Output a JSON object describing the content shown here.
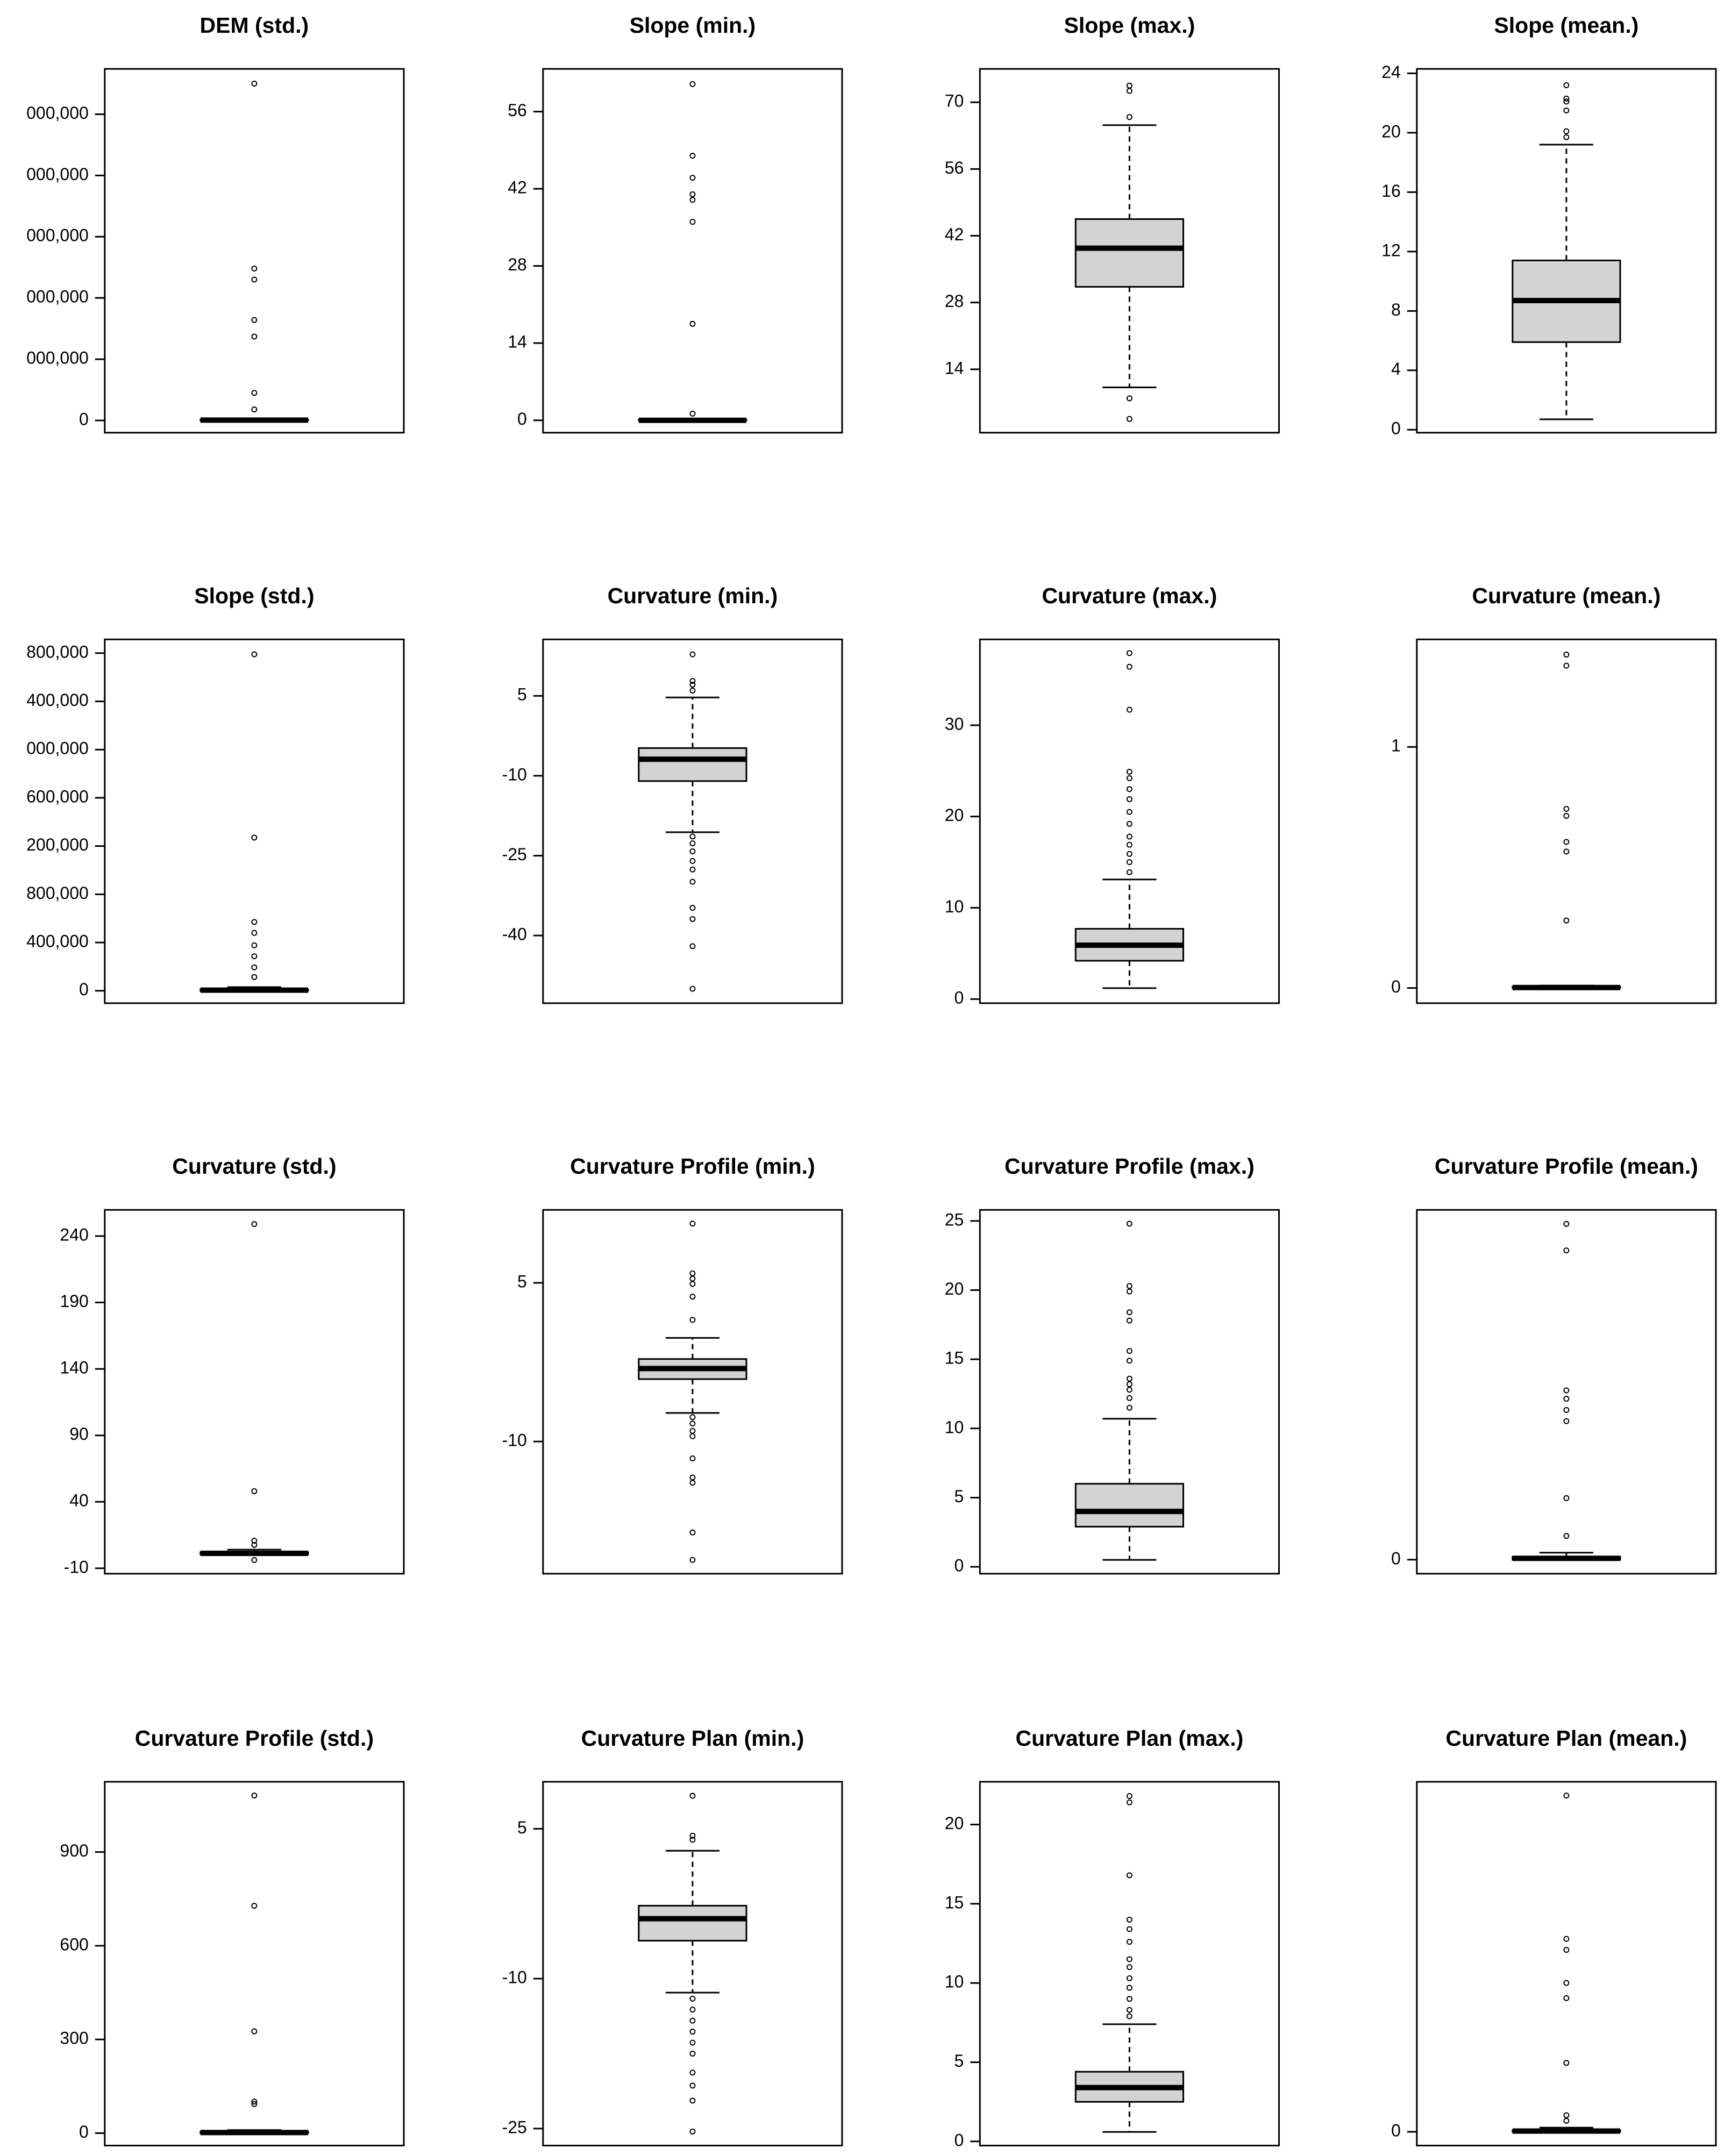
{
  "chart_data": [
    {
      "type": "box",
      "title": "DEM (std.)",
      "color": "#d3d3d3",
      "ylim": [
        -200000,
        5740000
      ],
      "yticks": [
        0,
        {
          "value": 1000000,
          "label": "000,000"
        },
        {
          "value": 2000000,
          "label": "000,000"
        },
        {
          "value": 3000000,
          "label": "000,000"
        },
        {
          "value": 4000000,
          "label": "000,000"
        },
        {
          "value": 5000000,
          "label": "000,000"
        }
      ],
      "whisker_low": 0,
      "q1": 0,
      "median": 5000,
      "q3": 10000,
      "whisker_high": 30000,
      "outliers": [
        5500000,
        2480000,
        2300000,
        1640000,
        1370000,
        450000,
        180000
      ]
    },
    {
      "type": "box",
      "title": "Slope (min.)",
      "color": "#d3d3d3",
      "ylim": [
        -2.25,
        63.75
      ],
      "yticks": [
        0,
        14,
        28,
        42,
        56
      ],
      "whisker_low": 0,
      "q1": 0,
      "median": 0,
      "q3": 0.1,
      "whisker_high": 0.3,
      "outliers": [
        61,
        48,
        44,
        41,
        40,
        36,
        17.5,
        1.2
      ]
    },
    {
      "type": "box",
      "title": "Slope (max.)",
      "color": "#d3d3d3",
      "ylim": [
        0.7,
        77
      ],
      "yticks": [
        14,
        28,
        42,
        56,
        70
      ],
      "whisker_low": 10.2,
      "q1": 31.3,
      "median": 39.4,
      "q3": 45.5,
      "whisker_high": 65.2,
      "outliers": [
        73.5,
        72.4,
        66.9,
        7.9,
        3.6
      ]
    },
    {
      "type": "box",
      "title": "Slope (mean.)",
      "color": "#d3d3d3",
      "ylim": [
        -0.2,
        24.3
      ],
      "yticks": [
        0,
        4,
        8,
        12,
        16,
        20,
        24
      ],
      "whisker_low": 0.7,
      "q1": 5.9,
      "median": 8.7,
      "q3": 11.4,
      "whisker_high": 19.2,
      "outliers": [
        23.2,
        22.3,
        22.1,
        21.5,
        20.1,
        19.7
      ]
    },
    {
      "type": "box",
      "title": "Slope (std.)",
      "color": "#d3d3d3",
      "ylim": [
        -103000,
        2914000
      ],
      "yticks": [
        0,
        {
          "value": 400000,
          "label": "400,000"
        },
        {
          "value": 800000,
          "label": "800,000"
        },
        {
          "value": 1200000,
          "label": "200,000"
        },
        {
          "value": 1600000,
          "label": "600,000"
        },
        {
          "value": 2000000,
          "label": "000,000"
        },
        {
          "value": 2400000,
          "label": "400,000"
        },
        {
          "value": 2800000,
          "label": "800,000"
        }
      ],
      "whisker_low": 0,
      "q1": 0,
      "median": 5000,
      "q3": 10000,
      "whisker_high": 30000,
      "outliers": [
        2790000,
        1270000,
        571000,
        480000,
        377000,
        286000,
        194000,
        114000
      ]
    },
    {
      "type": "box",
      "title": "Curvature (min.)",
      "color": "#d3d3d3",
      "ylim": [
        -52.7,
        15.6
      ],
      "yticks": [
        5,
        -10,
        -25,
        -40
      ],
      "whisker_low": -20.6,
      "q1": -11.0,
      "median": -6.9,
      "q3": -4.8,
      "whisker_high": 4.7,
      "outliers": [
        12.8,
        7.8,
        7.1,
        6.0,
        -21.4,
        -22.7,
        -24.2,
        -26.0,
        -27.6,
        -29.9,
        -34.8,
        -36.9,
        -42.0,
        -50.0
      ]
    },
    {
      "type": "box",
      "title": "Curvature (max.)",
      "color": "#d3d3d3",
      "ylim": [
        -0.45,
        39.4
      ],
      "yticks": [
        0,
        10,
        20,
        30
      ],
      "whisker_low": 1.2,
      "q1": 4.2,
      "median": 5.9,
      "q3": 7.7,
      "whisker_high": 13.1,
      "outliers": [
        37.9,
        36.4,
        31.7,
        24.9,
        24.2,
        23.0,
        21.9,
        20.5,
        19.2,
        17.8,
        16.9,
        15.9,
        15.0,
        13.9
      ]
    },
    {
      "type": "box",
      "title": "Curvature (mean.)",
      "color": "#d3d3d3",
      "ylim": [
        -0.063,
        1.446
      ],
      "yticks": [
        0,
        1
      ],
      "whisker_low": 0,
      "q1": 0,
      "median": 0.002,
      "q3": 0.005,
      "whisker_high": 0.01,
      "outliers": [
        1.383,
        1.337,
        0.743,
        0.714,
        0.606,
        0.566,
        0.28
      ]
    },
    {
      "type": "box",
      "title": "Curvature (std.)",
      "color": "#d3d3d3",
      "ylim": [
        -14.1,
        259.7
      ],
      "yticks": [
        -10,
        40,
        90,
        140,
        190,
        240
      ],
      "whisker_low": 0,
      "q1": 0.5,
      "median": 1.2,
      "q3": 2,
      "whisker_high": 4,
      "outliers": [
        249,
        48,
        10.7,
        7.6,
        -3.8
      ]
    },
    {
      "type": "box",
      "title": "Curvature Profile (min.)",
      "color": "#d3d3d3",
      "ylim": [
        -22.5,
        11.9
      ],
      "yticks": [
        5,
        -10
      ],
      "whisker_low": -7.3,
      "q1": -4.1,
      "median": -3.1,
      "q3": -2.2,
      "whisker_high": -0.2,
      "outliers": [
        10.6,
        5.9,
        5.4,
        4.9,
        3.7,
        1.5,
        -7.7,
        -8.3,
        -9.0,
        -9.5,
        -11.6,
        -13.4,
        -13.9,
        -18.6,
        -21.2
      ]
    },
    {
      "type": "box",
      "title": "Curvature Profile (max.)",
      "color": "#d3d3d3",
      "ylim": [
        -0.5,
        25.8
      ],
      "yticks": [
        0,
        5,
        10,
        15,
        20,
        25
      ],
      "whisker_low": 0.5,
      "q1": 2.9,
      "median": 4.0,
      "q3": 6.0,
      "whisker_high": 10.7,
      "outliers": [
        24.8,
        20.3,
        19.9,
        18.4,
        17.8,
        15.6,
        14.9,
        13.6,
        13.2,
        12.8,
        12.2,
        11.5
      ]
    },
    {
      "type": "box",
      "title": "Curvature Profile (mean.)",
      "color": "#d3d3d3",
      "ylim": [
        -0.1,
        2.5
      ],
      "yticks": [
        0
      ],
      "whisker_low": 0,
      "q1": 0,
      "median": 0.01,
      "q3": 0.02,
      "whisker_high": 0.05,
      "outliers": [
        2.4,
        2.21,
        1.21,
        1.15,
        1.07,
        0.99,
        0.44,
        0.17
      ]
    },
    {
      "type": "box",
      "title": "Curvature Profile (std.)",
      "color": "#d3d3d3",
      "ylim": [
        -39.7,
        1125
      ],
      "yticks": [
        0,
        300,
        600,
        900
      ],
      "whisker_low": 0,
      "q1": 0,
      "median": 2,
      "q3": 5,
      "whisker_high": 10,
      "outliers": [
        1081,
        728,
        326,
        101,
        93
      ]
    },
    {
      "type": "box",
      "title": "Curvature Plan (min.)",
      "color": "#d3d3d3",
      "ylim": [
        -26.7,
        9.7
      ],
      "yticks": [
        5,
        -10,
        -25
      ],
      "whisker_low": -11.4,
      "q1": -6.2,
      "median": -4.0,
      "q3": -2.7,
      "whisker_high": 2.8,
      "outliers": [
        8.3,
        4.3,
        3.9,
        -12.0,
        -13.1,
        -14.2,
        -15.3,
        -16.4,
        -17.5,
        -19.4,
        -20.7,
        -22.2,
        -25.3
      ]
    },
    {
      "type": "box",
      "title": "Curvature Plan (max.)",
      "color": "#d3d3d3",
      "ylim": [
        -0.26,
        22.7
      ],
      "yticks": [
        0,
        5,
        10,
        15,
        20
      ],
      "whisker_low": 0.6,
      "q1": 2.5,
      "median": 3.4,
      "q3": 4.4,
      "whisker_high": 7.4,
      "outliers": [
        21.8,
        21.4,
        16.8,
        14.0,
        13.4,
        12.6,
        11.5,
        11.0,
        10.3,
        9.7,
        9.0,
        8.3,
        7.9
      ]
    },
    {
      "type": "box",
      "title": "Curvature Plan (mean.)",
      "color": "#d3d3d3",
      "ylim": [
        -0.1,
        2.54
      ],
      "yticks": [
        0
      ],
      "whisker_low": 0,
      "q1": 0,
      "median": 0.005,
      "q3": 0.01,
      "whisker_high": 0.03,
      "outliers": [
        2.44,
        1.4,
        1.32,
        1.08,
        0.97,
        0.5,
        0.12,
        0.08
      ]
    }
  ]
}
